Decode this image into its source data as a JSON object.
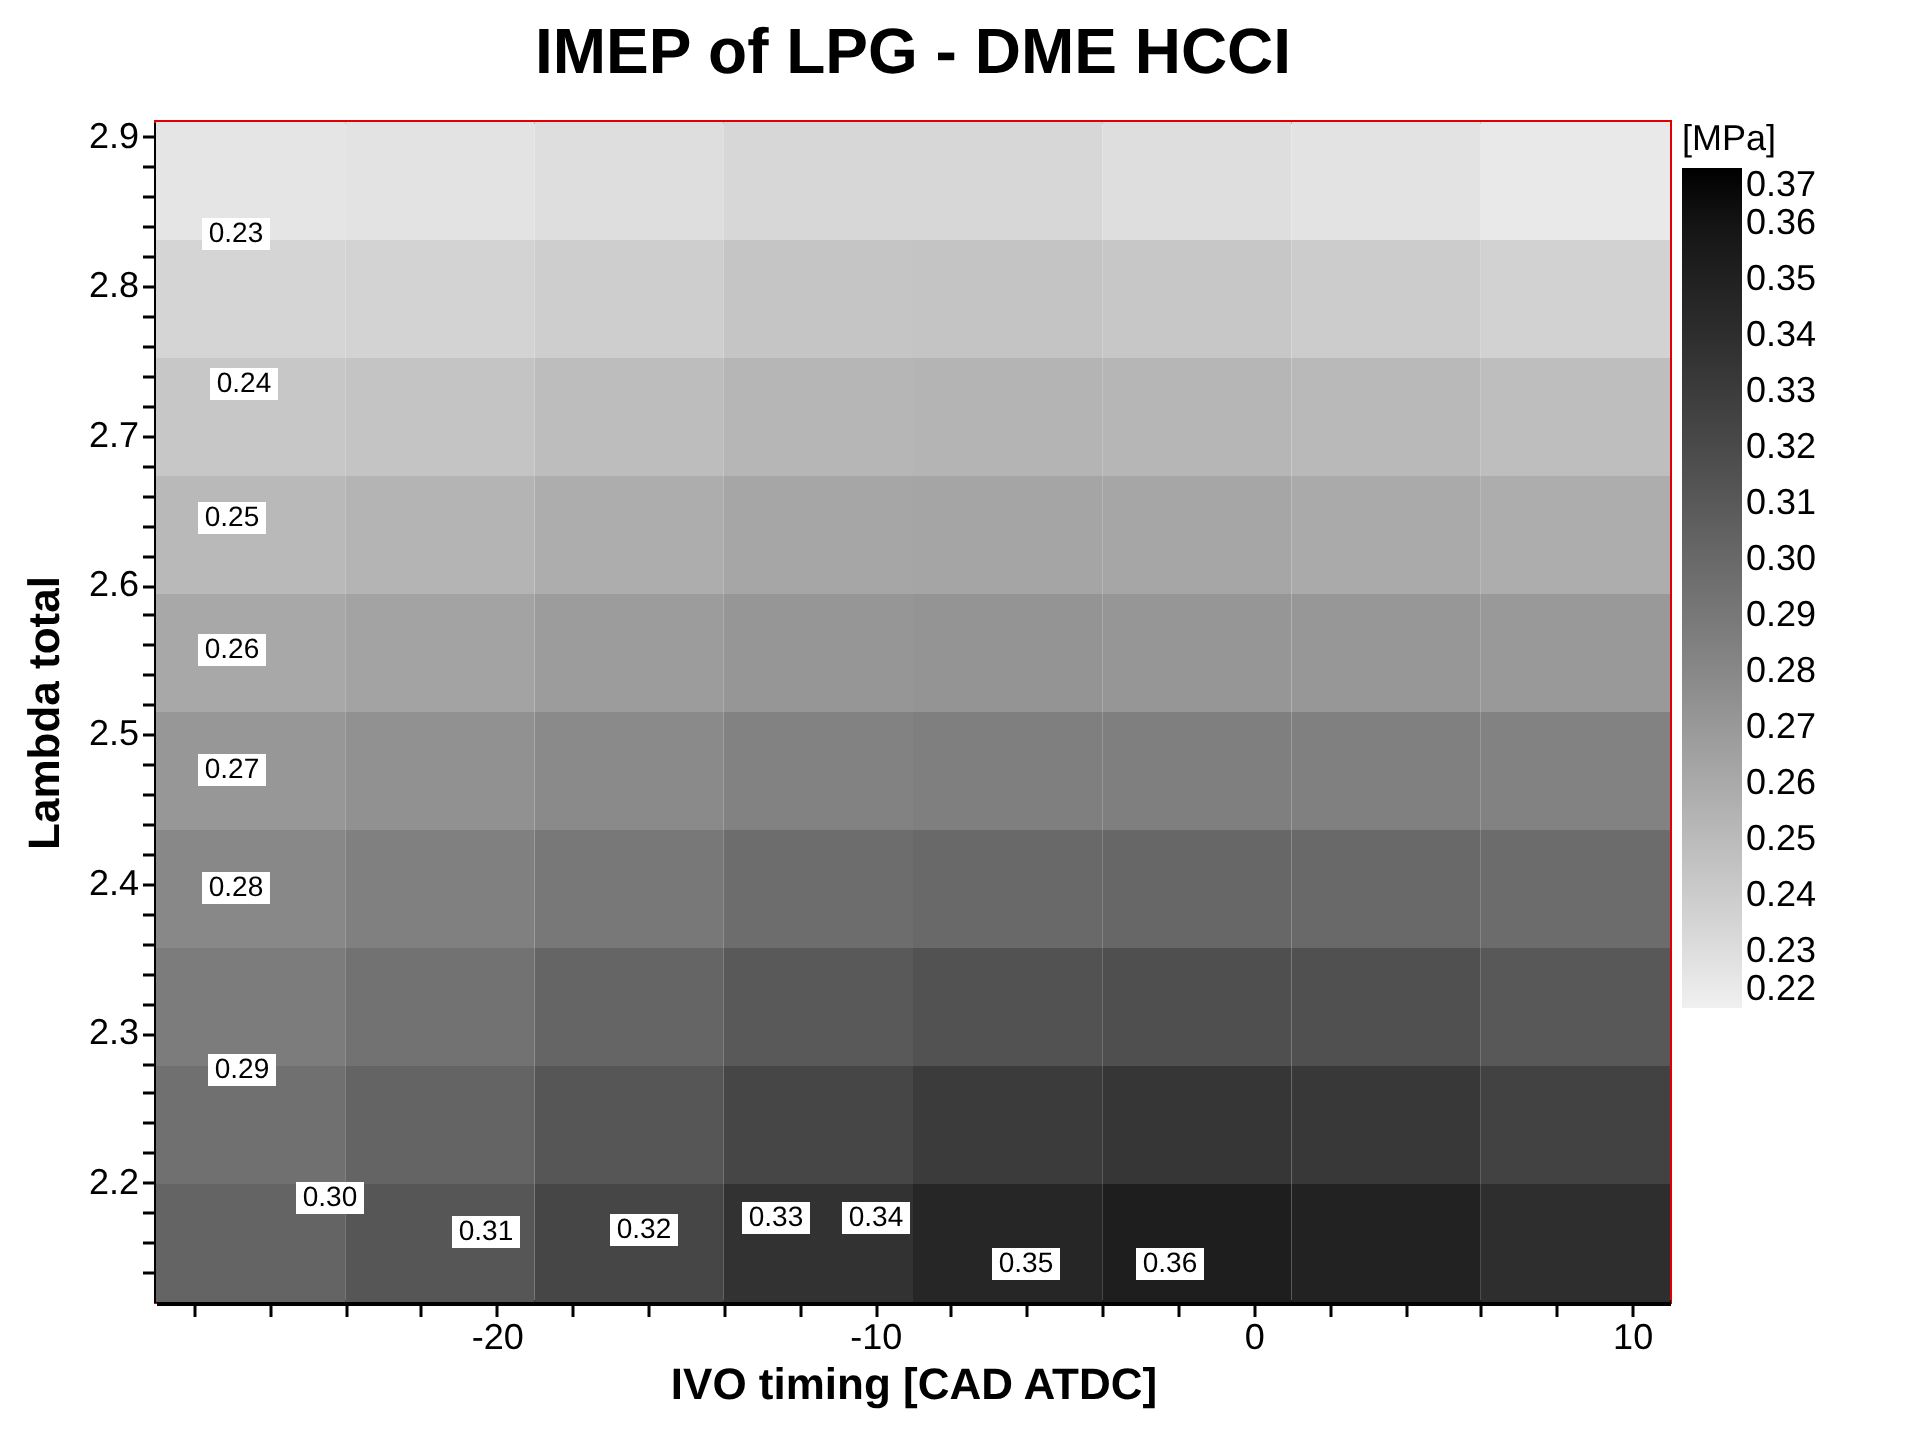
{
  "chart_data": {
    "type": "heatmap",
    "title": "IMEP of LPG - DME HCCI",
    "xlabel": "IVO timing  [CAD ATDC]",
    "ylabel": "Lambda total",
    "clabel": "[MPa]",
    "xlim": [
      -29,
      11
    ],
    "ylim": [
      2.12,
      2.91
    ],
    "xticks": [
      {
        "value": -28,
        "label": null
      },
      {
        "value": -26,
        "label": null
      },
      {
        "value": -24,
        "label": null
      },
      {
        "value": -22,
        "label": null
      },
      -20,
      {
        "value": -18,
        "label": null
      },
      {
        "value": -16,
        "label": null
      },
      {
        "value": -14,
        "label": null
      },
      {
        "value": -12,
        "label": null
      },
      -10,
      {
        "value": -8,
        "label": null
      },
      {
        "value": -6,
        "label": null
      },
      {
        "value": -4,
        "label": null
      },
      {
        "value": -2,
        "label": null
      },
      0,
      {
        "value": 2,
        "label": null
      },
      {
        "value": 4,
        "label": null
      },
      {
        "value": 6,
        "label": null
      },
      {
        "value": 8,
        "label": null
      },
      10
    ],
    "yticks": [
      {
        "value": 2.14,
        "label": null
      },
      {
        "value": 2.16,
        "label": null
      },
      {
        "value": 2.18,
        "label": null
      },
      2.2,
      {
        "value": 2.22,
        "label": null
      },
      {
        "value": 2.24,
        "label": null
      },
      {
        "value": 2.26,
        "label": null
      },
      {
        "value": 2.28,
        "label": null
      },
      2.3,
      {
        "value": 2.32,
        "label": null
      },
      {
        "value": 2.34,
        "label": null
      },
      {
        "value": 2.36,
        "label": null
      },
      {
        "value": 2.38,
        "label": null
      },
      2.4,
      {
        "value": 2.42,
        "label": null
      },
      {
        "value": 2.44,
        "label": null
      },
      {
        "value": 2.46,
        "label": null
      },
      {
        "value": 2.48,
        "label": null
      },
      2.5,
      {
        "value": 2.52,
        "label": null
      },
      {
        "value": 2.54,
        "label": null
      },
      {
        "value": 2.56,
        "label": null
      },
      {
        "value": 2.58,
        "label": null
      },
      2.6,
      {
        "value": 2.62,
        "label": null
      },
      {
        "value": 2.64,
        "label": null
      },
      {
        "value": 2.66,
        "label": null
      },
      {
        "value": 2.68,
        "label": null
      },
      2.7,
      {
        "value": 2.72,
        "label": null
      },
      {
        "value": 2.74,
        "label": null
      },
      {
        "value": 2.76,
        "label": null
      },
      {
        "value": 2.78,
        "label": null
      },
      2.8,
      {
        "value": 2.82,
        "label": null
      },
      {
        "value": 2.84,
        "label": null
      },
      {
        "value": 2.86,
        "label": null
      },
      {
        "value": 2.88,
        "label": null
      },
      2.9
    ],
    "clim": [
      0.22,
      0.37
    ],
    "cticks": [
      {
        "value": 0.22,
        "label": "0.22"
      },
      {
        "value": 0.23,
        "label": "0.23"
      },
      {
        "value": 0.24,
        "label": "0.24"
      },
      {
        "value": 0.25,
        "label": "0.25"
      },
      {
        "value": 0.26,
        "label": "0.26"
      },
      {
        "value": 0.27,
        "label": "0.27"
      },
      {
        "value": 0.28,
        "label": "0.28"
      },
      {
        "value": 0.29,
        "label": "0.29"
      },
      {
        "value": 0.3,
        "label": "0.30"
      },
      {
        "value": 0.31,
        "label": "0.31"
      },
      {
        "value": 0.32,
        "label": "0.32"
      },
      {
        "value": 0.33,
        "label": "0.33"
      },
      {
        "value": 0.34,
        "label": "0.34"
      },
      {
        "value": 0.35,
        "label": "0.35"
      },
      {
        "value": 0.36,
        "label": "0.36"
      },
      {
        "value": 0.37,
        "label": "0.37"
      }
    ],
    "cells": [
      [
        0.226,
        0.227,
        0.23,
        0.234,
        0.234,
        0.23,
        0.227,
        0.224
      ],
      [
        0.235,
        0.236,
        0.239,
        0.244,
        0.245,
        0.243,
        0.24,
        0.237
      ],
      [
        0.243,
        0.245,
        0.249,
        0.253,
        0.254,
        0.253,
        0.251,
        0.248
      ],
      [
        0.251,
        0.254,
        0.258,
        0.262,
        0.263,
        0.262,
        0.26,
        0.258
      ],
      [
        0.261,
        0.264,
        0.268,
        0.272,
        0.273,
        0.272,
        0.271,
        0.27
      ],
      [
        0.271,
        0.275,
        0.279,
        0.284,
        0.286,
        0.286,
        0.285,
        0.284
      ],
      [
        0.28,
        0.285,
        0.29,
        0.297,
        0.3,
        0.301,
        0.3,
        0.298
      ],
      [
        0.288,
        0.294,
        0.302,
        0.31,
        0.315,
        0.317,
        0.316,
        0.311
      ],
      [
        0.295,
        0.303,
        0.312,
        0.323,
        0.331,
        0.334,
        0.333,
        0.326
      ],
      [
        0.303,
        0.312,
        0.323,
        0.337,
        0.346,
        0.352,
        0.349,
        0.34
      ]
    ],
    "annotations": [
      "0.23",
      "0.24",
      "0.25",
      "0.26",
      "0.27",
      "0.28",
      "0.29",
      "0.30",
      "0.31",
      "0.32",
      "0.33",
      "0.34",
      "0.35",
      "0.36"
    ]
  }
}
